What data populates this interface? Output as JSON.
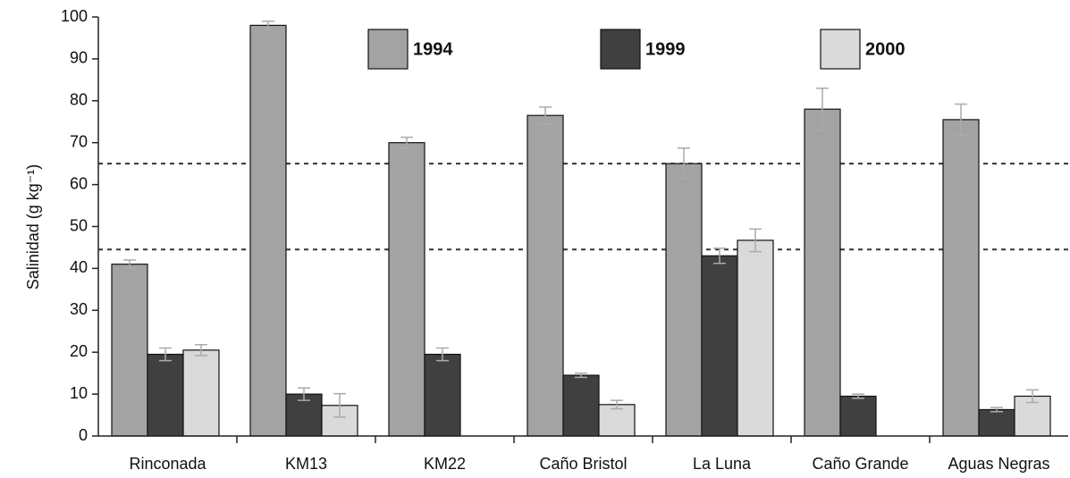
{
  "chart_data": {
    "type": "bar",
    "ylabel": "Salinidad (g kg⁻¹)",
    "categories": [
      "Rinconada",
      "KM13",
      "KM22",
      "Caño Bristol",
      "La Luna",
      "Caño Grande",
      "Aguas Negras"
    ],
    "series": [
      {
        "name": "1994",
        "color": "#a3a3a3",
        "values": [
          41,
          98,
          70,
          76.5,
          65,
          78,
          75.5
        ],
        "errors": [
          1,
          1,
          1.3,
          2,
          3.7,
          5,
          3.7
        ]
      },
      {
        "name": "1999",
        "color": "#404040",
        "values": [
          19.5,
          10,
          19.5,
          14.5,
          43,
          9.5,
          6.3
        ],
        "errors": [
          1.5,
          1.5,
          1.5,
          0.5,
          1.8,
          0.5,
          0.5
        ]
      },
      {
        "name": "2000",
        "color": "#dadada",
        "values": [
          20.5,
          7.3,
          null,
          7.5,
          46.7,
          null,
          9.5
        ],
        "errors": [
          1.3,
          2.8,
          null,
          1,
          2.7,
          null,
          1.5
        ]
      }
    ],
    "reference_lines": [
      65,
      44.5
    ],
    "ylim": [
      0,
      100
    ],
    "yticks": [
      0,
      10,
      20,
      30,
      40,
      50,
      60,
      70,
      80,
      90,
      100
    ]
  }
}
